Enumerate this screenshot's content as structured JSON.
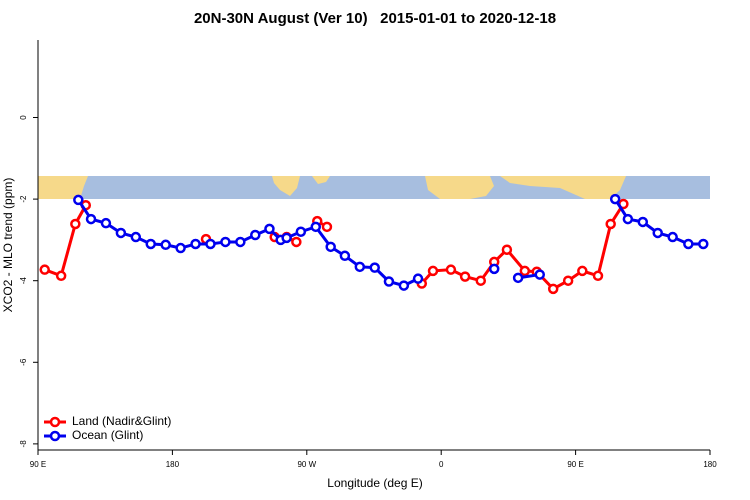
{
  "chart_data": {
    "type": "line",
    "title": "20N-30N August (Ver 10)   2015-01-01 to 2020-12-18",
    "xlabel": "Longitude (deg E)",
    "ylabel": "XCO2 - MLO trend (ppm)",
    "xlim": [
      90,
      540
    ],
    "ylim": [
      -8.15,
      1.9
    ],
    "xticks": [
      {
        "value": 90,
        "label": "90 E"
      },
      {
        "value": 180,
        "label": "180"
      },
      {
        "value": 270,
        "label": "90 W"
      },
      {
        "value": 360,
        "label": "0"
      },
      {
        "value": 450,
        "label": "90 E"
      },
      {
        "value": 540,
        "label": "180"
      }
    ],
    "yticks": [
      0,
      -2,
      -4,
      -6,
      -8
    ],
    "legend": "lower left",
    "series": [
      {
        "name": "Land (Nadir&Glint)",
        "color": "#ff0000",
        "x": [
          94.5,
          105.5,
          115,
          122,
          null,
          202.5,
          null,
          248.5,
          256.5,
          263,
          null,
          277,
          283.5,
          null,
          347,
          354.5,
          366.5,
          376,
          386.5,
          395.5,
          404,
          416,
          424,
          435,
          445,
          454.5,
          465,
          473.5,
          482
        ],
        "values": [
          -3.73,
          -3.88,
          -2.61,
          -2.15,
          null,
          -2.98,
          null,
          -2.93,
          -2.93,
          -3.05,
          null,
          -2.54,
          -2.68,
          null,
          -4.07,
          -3.76,
          -3.73,
          -3.9,
          -4.0,
          -3.54,
          -3.24,
          -3.76,
          -3.78,
          -4.2,
          -4.0,
          -3.76,
          -3.88,
          -2.61,
          -2.12
        ]
      },
      {
        "name": "Ocean (Glint)",
        "color": "#0000ee",
        "x": [
          117,
          125.5,
          135.5,
          145.5,
          155.5,
          165.5,
          175.5,
          185.5,
          195.5,
          205.5,
          215.5,
          225.5,
          235.5,
          245,
          252.5,
          256.5,
          266,
          276,
          286,
          295.5,
          305.5,
          315.5,
          325,
          335,
          344.5,
          null,
          395.5,
          null,
          411.5,
          426,
          null,
          476.5,
          485,
          495,
          505,
          515,
          525.5,
          535.5
        ],
        "values": [
          -2.02,
          -2.49,
          -2.59,
          -2.83,
          -2.93,
          -3.1,
          -3.12,
          -3.2,
          -3.1,
          -3.1,
          -3.05,
          -3.05,
          -2.88,
          -2.73,
          -3.0,
          -2.95,
          -2.8,
          -2.68,
          -3.17,
          -3.39,
          -3.66,
          -3.68,
          -4.02,
          -4.12,
          -3.95,
          null,
          -3.71,
          null,
          -3.93,
          -3.85,
          null,
          -2.0,
          -2.49,
          -2.56,
          -2.83,
          -2.93,
          -3.1,
          -3.1
        ]
      }
    ]
  }
}
